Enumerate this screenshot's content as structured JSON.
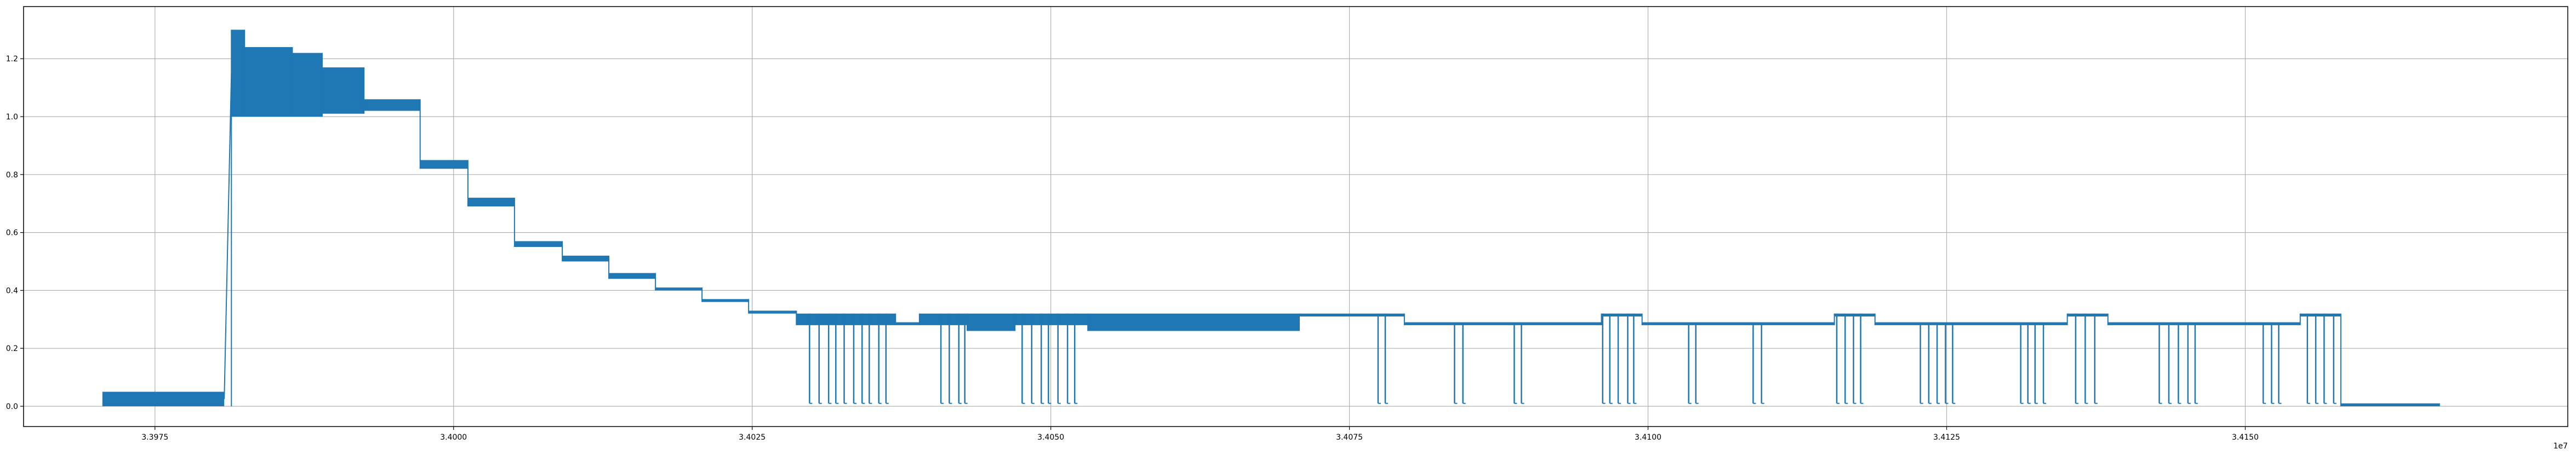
{
  "chart_data": {
    "type": "line",
    "title": "",
    "xlabel": "",
    "ylabel": "",
    "x_offset_label": "1e7",
    "xlim": [
      3.3964,
      3.4177
    ],
    "ylim": [
      -0.07,
      1.38
    ],
    "grid": true,
    "legend": "none",
    "series_color": "#1f77b4",
    "xticks": [
      {
        "value": 3.3975,
        "label": "3.3975"
      },
      {
        "value": 3.4,
        "label": "3.4000"
      },
      {
        "value": 3.4025,
        "label": "3.4025"
      },
      {
        "value": 3.405,
        "label": "3.4050"
      },
      {
        "value": 3.4075,
        "label": "3.4075"
      },
      {
        "value": 3.41,
        "label": "3.4100"
      },
      {
        "value": 3.4125,
        "label": "3.4125"
      },
      {
        "value": 3.415,
        "label": "3.4150"
      }
    ],
    "yticks": [
      {
        "value": 0.0,
        "label": "0.0"
      },
      {
        "value": 0.2,
        "label": "0.2"
      },
      {
        "value": 0.4,
        "label": "0.4"
      },
      {
        "value": 0.6,
        "label": "0.6"
      },
      {
        "value": 0.8,
        "label": "0.8"
      },
      {
        "value": 1.0,
        "label": "1.0"
      },
      {
        "value": 1.2,
        "label": "1.2"
      }
    ],
    "series": [
      {
        "bands": [
          {
            "x0": 3.39706,
            "x1": 3.39808,
            "low": 0.0,
            "high": 0.05
          },
          {
            "x0": 3.39814,
            "x1": 3.39825,
            "low": 1.0,
            "high": 1.3
          },
          {
            "x0": 3.39825,
            "x1": 3.39865,
            "low": 1.0,
            "high": 1.24
          },
          {
            "x0": 3.39865,
            "x1": 3.3989,
            "low": 1.0,
            "high": 1.22
          },
          {
            "x0": 3.3989,
            "x1": 3.39925,
            "low": 1.01,
            "high": 1.17
          },
          {
            "x0": 3.39925,
            "x1": 3.39972,
            "low": 1.02,
            "high": 1.06
          },
          {
            "x0": 3.39972,
            "x1": 3.40012,
            "low": 0.82,
            "high": 0.85
          },
          {
            "x0": 3.40012,
            "x1": 3.40051,
            "low": 0.69,
            "high": 0.72
          },
          {
            "x0": 3.40051,
            "x1": 3.40091,
            "low": 0.55,
            "high": 0.57
          },
          {
            "x0": 3.40091,
            "x1": 3.4013,
            "low": 0.5,
            "high": 0.52
          },
          {
            "x0": 3.4013,
            "x1": 3.40169,
            "low": 0.44,
            "high": 0.46
          },
          {
            "x0": 3.40169,
            "x1": 3.40208,
            "low": 0.4,
            "high": 0.41
          },
          {
            "x0": 3.40208,
            "x1": 3.40247,
            "low": 0.36,
            "high": 0.37
          },
          {
            "x0": 3.40247,
            "x1": 3.40287,
            "low": 0.32,
            "high": 0.33
          },
          {
            "x0": 3.40287,
            "x1": 3.4037,
            "low": 0.28,
            "high": 0.32
          },
          {
            "x0": 3.4037,
            "x1": 3.4039,
            "low": 0.28,
            "high": 0.29
          },
          {
            "x0": 3.4039,
            "x1": 3.4043,
            "low": 0.28,
            "high": 0.32
          },
          {
            "x0": 3.4043,
            "x1": 3.4047,
            "low": 0.26,
            "high": 0.32
          },
          {
            "x0": 3.4047,
            "x1": 3.40531,
            "low": 0.28,
            "high": 0.32
          },
          {
            "x0": 3.40531,
            "x1": 3.40708,
            "low": 0.26,
            "high": 0.32
          },
          {
            "x0": 3.40708,
            "x1": 3.40796,
            "low": 0.31,
            "high": 0.32
          },
          {
            "x0": 3.40796,
            "x1": 3.40961,
            "low": 0.28,
            "high": 0.29
          },
          {
            "x0": 3.40961,
            "x1": 3.40995,
            "low": 0.31,
            "high": 0.32
          },
          {
            "x0": 3.40995,
            "x1": 3.41156,
            "low": 0.28,
            "high": 0.29
          },
          {
            "x0": 3.41156,
            "x1": 3.4119,
            "low": 0.31,
            "high": 0.32
          },
          {
            "x0": 3.4119,
            "x1": 3.41351,
            "low": 0.28,
            "high": 0.29
          },
          {
            "x0": 3.41351,
            "x1": 3.41385,
            "low": 0.31,
            "high": 0.32
          },
          {
            "x0": 3.41385,
            "x1": 3.41546,
            "low": 0.28,
            "high": 0.29
          },
          {
            "x0": 3.41546,
            "x1": 3.4158,
            "low": 0.31,
            "high": 0.32
          },
          {
            "x0": 3.4158,
            "x1": 3.41663,
            "low": 0.0,
            "high": 0.01
          }
        ],
        "dropouts": [
          3.40298,
          3.40306,
          3.40314,
          3.4032,
          3.40327,
          3.40335,
          3.40342,
          3.40348,
          3.40356,
          3.40362,
          3.40408,
          3.40415,
          3.40423,
          3.40428,
          3.40476,
          3.40484,
          3.40492,
          3.40498,
          3.40506,
          3.40514,
          3.4052,
          3.40774,
          3.4078,
          3.40838,
          3.40845,
          3.40888,
          3.40894,
          3.40962,
          3.40968,
          3.40975,
          3.40983,
          3.40988,
          3.41034,
          3.4104,
          3.41088,
          3.41095,
          3.41158,
          3.41165,
          3.41172,
          3.41178,
          3.41228,
          3.41235,
          3.41242,
          3.41249,
          3.41255,
          3.41312,
          3.41318,
          3.41324,
          3.41331,
          3.41358,
          3.41366,
          3.41374,
          3.41428,
          3.41436,
          3.41444,
          3.41452,
          3.41458,
          3.41515,
          3.41522,
          3.41528,
          3.41552,
          3.41559,
          3.41566,
          3.41574
        ]
      }
    ]
  }
}
